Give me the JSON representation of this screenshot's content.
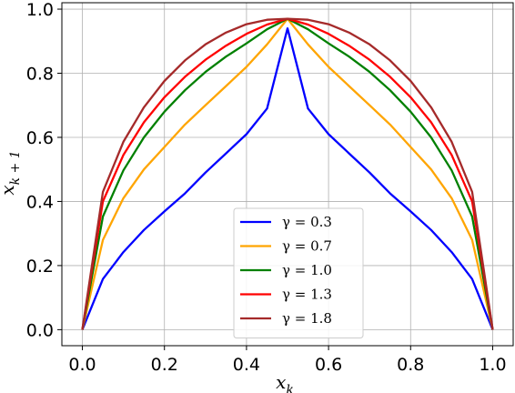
{
  "chart_data": {
    "type": "line",
    "title": "",
    "xlabel": "x",
    "xlabel_sub": "k",
    "ylabel": "x",
    "ylabel_sub": "k + 1",
    "xlim": [
      -0.05,
      1.05
    ],
    "ylim": [
      -0.05,
      1.02
    ],
    "xticks": [
      "0.0",
      "0.2",
      "0.4",
      "0.6",
      "0.8",
      "1.0"
    ],
    "yticks": [
      "0.0",
      "0.2",
      "0.4",
      "0.6",
      "0.8",
      "1.0"
    ],
    "grid": true,
    "legend_position": "lower center",
    "x": [
      0.0,
      0.05,
      0.1,
      0.15,
      0.2,
      0.25,
      0.3,
      0.35,
      0.4,
      0.45,
      0.5,
      0.55,
      0.6,
      0.65,
      0.7,
      0.75,
      0.8,
      0.85,
      0.9,
      0.95,
      1.0
    ],
    "series": [
      {
        "name": "γ = 0.3",
        "color": "#0000ff",
        "values": [
          0.0,
          0.158,
          0.242,
          0.311,
          0.369,
          0.425,
          0.49,
          0.55,
          0.61,
          0.69,
          0.94,
          0.69,
          0.61,
          0.55,
          0.49,
          0.425,
          0.369,
          0.311,
          0.242,
          0.158,
          0.0
        ]
      },
      {
        "name": "γ = 0.7",
        "color": "#ffa500",
        "values": [
          0.0,
          0.28,
          0.41,
          0.5,
          0.57,
          0.64,
          0.7,
          0.76,
          0.82,
          0.89,
          0.97,
          0.89,
          0.82,
          0.76,
          0.7,
          0.64,
          0.57,
          0.5,
          0.41,
          0.28,
          0.0
        ]
      },
      {
        "name": "γ = 1.0",
        "color": "#008000",
        "values": [
          0.0,
          0.353,
          0.497,
          0.6,
          0.68,
          0.747,
          0.804,
          0.852,
          0.893,
          0.937,
          0.97,
          0.937,
          0.893,
          0.852,
          0.804,
          0.747,
          0.68,
          0.6,
          0.497,
          0.353,
          0.0
        ]
      },
      {
        "name": "γ = 1.3",
        "color": "#ff0000",
        "values": [
          0.0,
          0.4,
          0.545,
          0.647,
          0.725,
          0.789,
          0.842,
          0.886,
          0.923,
          0.952,
          0.97,
          0.952,
          0.923,
          0.886,
          0.842,
          0.789,
          0.725,
          0.647,
          0.545,
          0.4,
          0.0
        ]
      },
      {
        "name": "γ = 1.8",
        "color": "#a52a2a",
        "values": [
          0.0,
          0.43,
          0.586,
          0.694,
          0.776,
          0.84,
          0.89,
          0.927,
          0.953,
          0.967,
          0.97,
          0.967,
          0.953,
          0.927,
          0.89,
          0.84,
          0.776,
          0.694,
          0.586,
          0.43,
          0.0
        ]
      }
    ]
  }
}
